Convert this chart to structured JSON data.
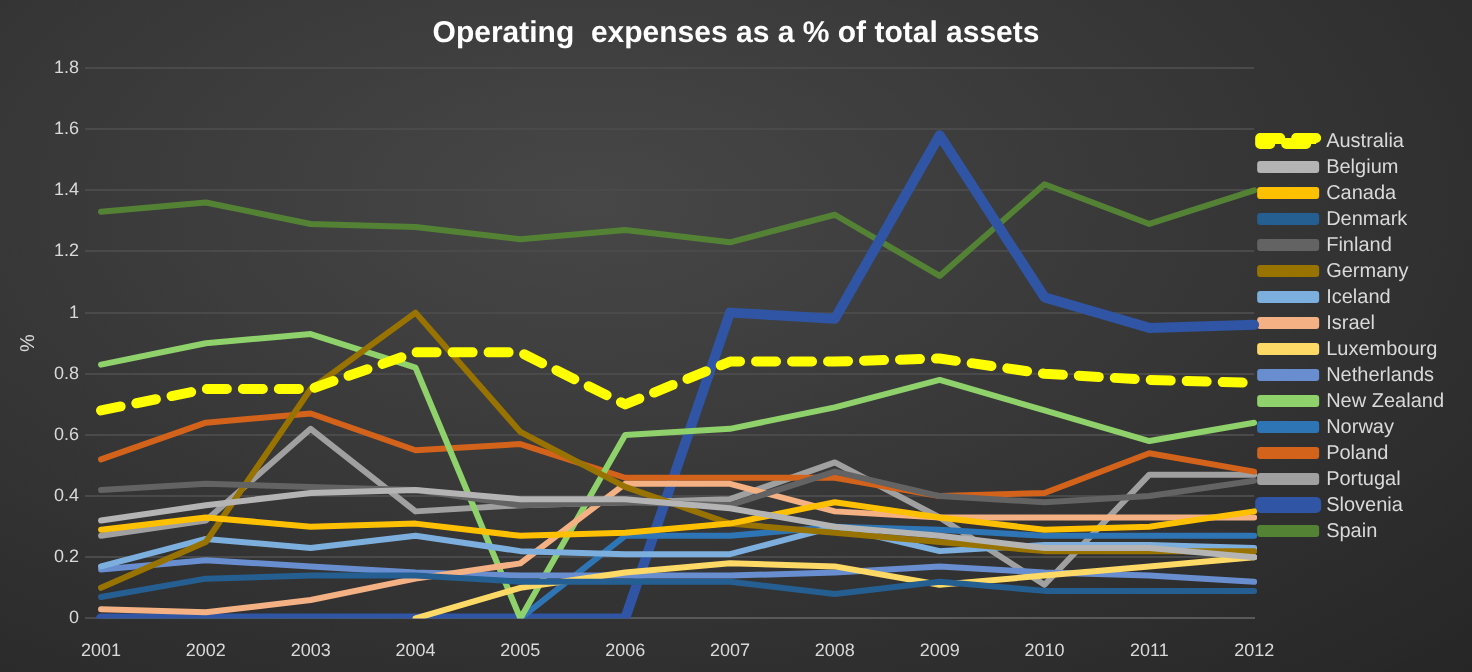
{
  "chart_data": {
    "type": "line",
    "title": "Operating  expenses as a % of total assets",
    "ylabel": "%",
    "categories": [
      "2001",
      "2002",
      "2003",
      "2004",
      "2005",
      "2006",
      "2007",
      "2008",
      "2009",
      "2010",
      "2011",
      "2012"
    ],
    "ylim": [
      0,
      1.8
    ],
    "yticks": [
      0,
      0.2,
      0.4,
      0.6,
      0.8,
      1,
      1.2,
      1.4,
      1.6,
      1.8
    ],
    "grid": "y",
    "legend": "right",
    "marker": "none",
    "series": [
      {
        "name": "Australia",
        "color": "#ffff00",
        "line_style": "dashed",
        "values": [
          0.68,
          0.75,
          0.75,
          0.87,
          0.87,
          0.7,
          0.84,
          0.84,
          0.85,
          0.8,
          0.78,
          0.77
        ]
      },
      {
        "name": "Belgium",
        "color": "#b4b4b4",
        "values": [
          0.32,
          0.37,
          0.41,
          0.42,
          0.39,
          0.39,
          0.36,
          0.3,
          0.27,
          0.23,
          0.23,
          0.2
        ]
      },
      {
        "name": "Canada",
        "color": "#ffc000",
        "values": [
          0.29,
          0.33,
          0.3,
          0.31,
          0.27,
          0.28,
          0.31,
          0.38,
          0.33,
          0.29,
          0.3,
          0.35
        ]
      },
      {
        "name": "Denmark",
        "color": "#255e91",
        "values": [
          0.07,
          0.13,
          0.14,
          0.14,
          0.12,
          0.12,
          0.12,
          0.08,
          0.12,
          0.09,
          0.09,
          0.09
        ]
      },
      {
        "name": "Finland",
        "color": "#636363",
        "values": [
          0.42,
          0.44,
          0.43,
          0.42,
          0.37,
          0.38,
          0.37,
          0.48,
          0.4,
          0.38,
          0.4,
          0.45
        ]
      },
      {
        "name": "Germany",
        "color": "#997300",
        "values": [
          0.1,
          0.25,
          0.75,
          1,
          0.61,
          0.43,
          0.31,
          0.28,
          0.25,
          0.22,
          0.22,
          0.22
        ]
      },
      {
        "name": "Iceland",
        "color": "#7cafdd",
        "values": [
          0.17,
          0.26,
          0.23,
          0.27,
          0.22,
          0.21,
          0.21,
          0.3,
          0.22,
          0.24,
          0.24,
          0.23
        ]
      },
      {
        "name": "Israel",
        "color": "#f4b183",
        "values": [
          0.03,
          0.02,
          0.06,
          0.13,
          0.18,
          0.44,
          0.44,
          0.35,
          0.33,
          0.33,
          0.33,
          0.33
        ]
      },
      {
        "name": "Luxembourg",
        "color": "#ffd966",
        "values": [
          null,
          null,
          null,
          0,
          0.1,
          0.15,
          0.18,
          0.17,
          0.11,
          0.14,
          0.17,
          0.2
        ]
      },
      {
        "name": "Netherlands",
        "color": "#698ed0",
        "values": [
          0.16,
          0.19,
          0.17,
          0.15,
          0.14,
          0.14,
          0.14,
          0.15,
          0.17,
          0.15,
          0.14,
          0.12
        ]
      },
      {
        "name": "New Zealand",
        "color": "#8fd16a",
        "values": [
          0.83,
          0.9,
          0.93,
          0.82,
          0,
          0.6,
          0.62,
          0.69,
          0.78,
          0.68,
          0.58,
          0.64
        ]
      },
      {
        "name": "Norway",
        "color": "#2e75b6",
        "values": [
          null,
          null,
          null,
          null,
          0,
          0.27,
          0.27,
          0.3,
          0.29,
          0.27,
          0.27,
          0.27
        ]
      },
      {
        "name": "Poland",
        "color": "#d3621a",
        "values": [
          0.52,
          0.64,
          0.67,
          0.55,
          0.57,
          0.46,
          0.46,
          0.46,
          0.4,
          0.41,
          0.54,
          0.48
        ]
      },
      {
        "name": "Portugal",
        "color": "#a0a0a0",
        "values": [
          0.27,
          0.32,
          0.62,
          0.35,
          0.37,
          0.38,
          0.39,
          0.51,
          0.33,
          0.11,
          0.47,
          0.47
        ]
      },
      {
        "name": "Slovenia",
        "color": "#2f55a4",
        "values": [
          0,
          0,
          0,
          0,
          0,
          0,
          1,
          0.98,
          1.58,
          1.05,
          0.95,
          0.96
        ]
      },
      {
        "name": "Spain",
        "color": "#548235",
        "values": [
          1.33,
          1.36,
          1.29,
          1.28,
          1.24,
          1.27,
          1.23,
          1.32,
          1.12,
          1.42,
          1.29,
          1.4
        ]
      }
    ]
  }
}
